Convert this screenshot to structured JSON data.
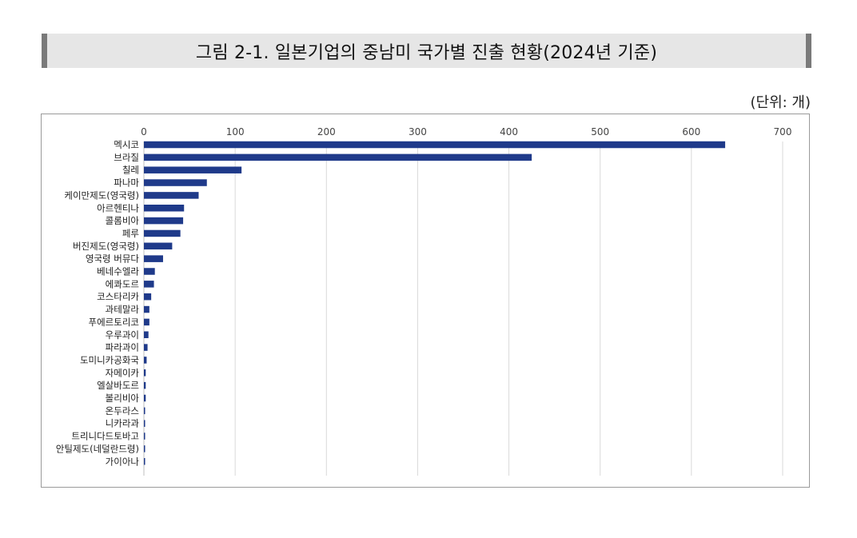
{
  "figure": {
    "title": "그림 2-1. 일본기업의 중남미 국가별 진출 현황(2024년 기준)",
    "unit": "(단위: 개)"
  },
  "chart_data": {
    "type": "bar",
    "orientation": "horizontal",
    "title": "그림 2-1. 일본기업의 중남미 국가별 진출 현황(2024년 기준)",
    "xlabel": "",
    "ylabel": "",
    "unit": "(단위: 개)",
    "xlim": [
      0,
      700
    ],
    "x_ticks": [
      0,
      100,
      200,
      300,
      400,
      500,
      600,
      700
    ],
    "axis_position": "top",
    "grid": true,
    "bar_color": "#1f3a8a",
    "categories": [
      "멕시코",
      "브라질",
      "칠레",
      "파나마",
      "케이만제도(영국령)",
      "아르헨티나",
      "콜롬비아",
      "페루",
      "버진제도(영국령)",
      "영국령 버뮤다",
      "베네수엘라",
      "에콰도르",
      "코스타리카",
      "과테말라",
      "푸에르토리코",
      "우루과이",
      "파라과이",
      "도미니카공화국",
      "자메이카",
      "엘살바도르",
      "볼리비아",
      "온두라스",
      "니카라과",
      "트리니다드토바고",
      "안틸제도(네덜란드령)",
      "가이아나"
    ],
    "values": [
      637,
      425,
      107,
      69,
      60,
      44,
      43,
      40,
      31,
      21,
      12,
      11,
      8,
      6,
      6,
      5,
      4,
      3,
      2,
      2,
      2,
      1,
      1,
      1,
      1,
      1
    ]
  }
}
